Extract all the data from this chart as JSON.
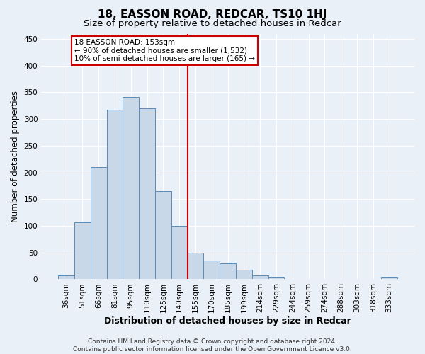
{
  "title": "18, EASSON ROAD, REDCAR, TS10 1HJ",
  "subtitle": "Size of property relative to detached houses in Redcar",
  "xlabel": "Distribution of detached houses by size in Redcar",
  "ylabel": "Number of detached properties",
  "categories": [
    "36sqm",
    "51sqm",
    "66sqm",
    "81sqm",
    "95sqm",
    "110sqm",
    "125sqm",
    "140sqm",
    "155sqm",
    "170sqm",
    "185sqm",
    "199sqm",
    "214sqm",
    "229sqm",
    "244sqm",
    "259sqm",
    "274sqm",
    "288sqm",
    "303sqm",
    "318sqm",
    "333sqm"
  ],
  "values": [
    7,
    107,
    210,
    318,
    342,
    320,
    165,
    100,
    50,
    35,
    30,
    18,
    7,
    5,
    1,
    1,
    1,
    1,
    1,
    1,
    4
  ],
  "bar_color": "#c8d8e8",
  "bar_edge_color": "#5a8ab5",
  "background_color": "#eaf0f8",
  "grid_color": "#ffffff",
  "ylim": [
    0,
    460
  ],
  "yticks": [
    0,
    50,
    100,
    150,
    200,
    250,
    300,
    350,
    400,
    450
  ],
  "vline_x_index": 8,
  "vline_color": "#cc0000",
  "annotation_line1": "18 EASSON ROAD: 153sqm",
  "annotation_line2": "← 90% of detached houses are smaller (1,532)",
  "annotation_line3": "10% of semi-detached houses are larger (165) →",
  "annotation_box_color": "#ffffff",
  "annotation_box_edge": "#cc0000",
  "footer": "Contains HM Land Registry data © Crown copyright and database right 2024.\nContains public sector information licensed under the Open Government Licence v3.0.",
  "title_fontsize": 11,
  "subtitle_fontsize": 9.5,
  "xlabel_fontsize": 9,
  "ylabel_fontsize": 8.5,
  "tick_fontsize": 7.5,
  "annotation_fontsize": 7.5,
  "footer_fontsize": 6.5
}
